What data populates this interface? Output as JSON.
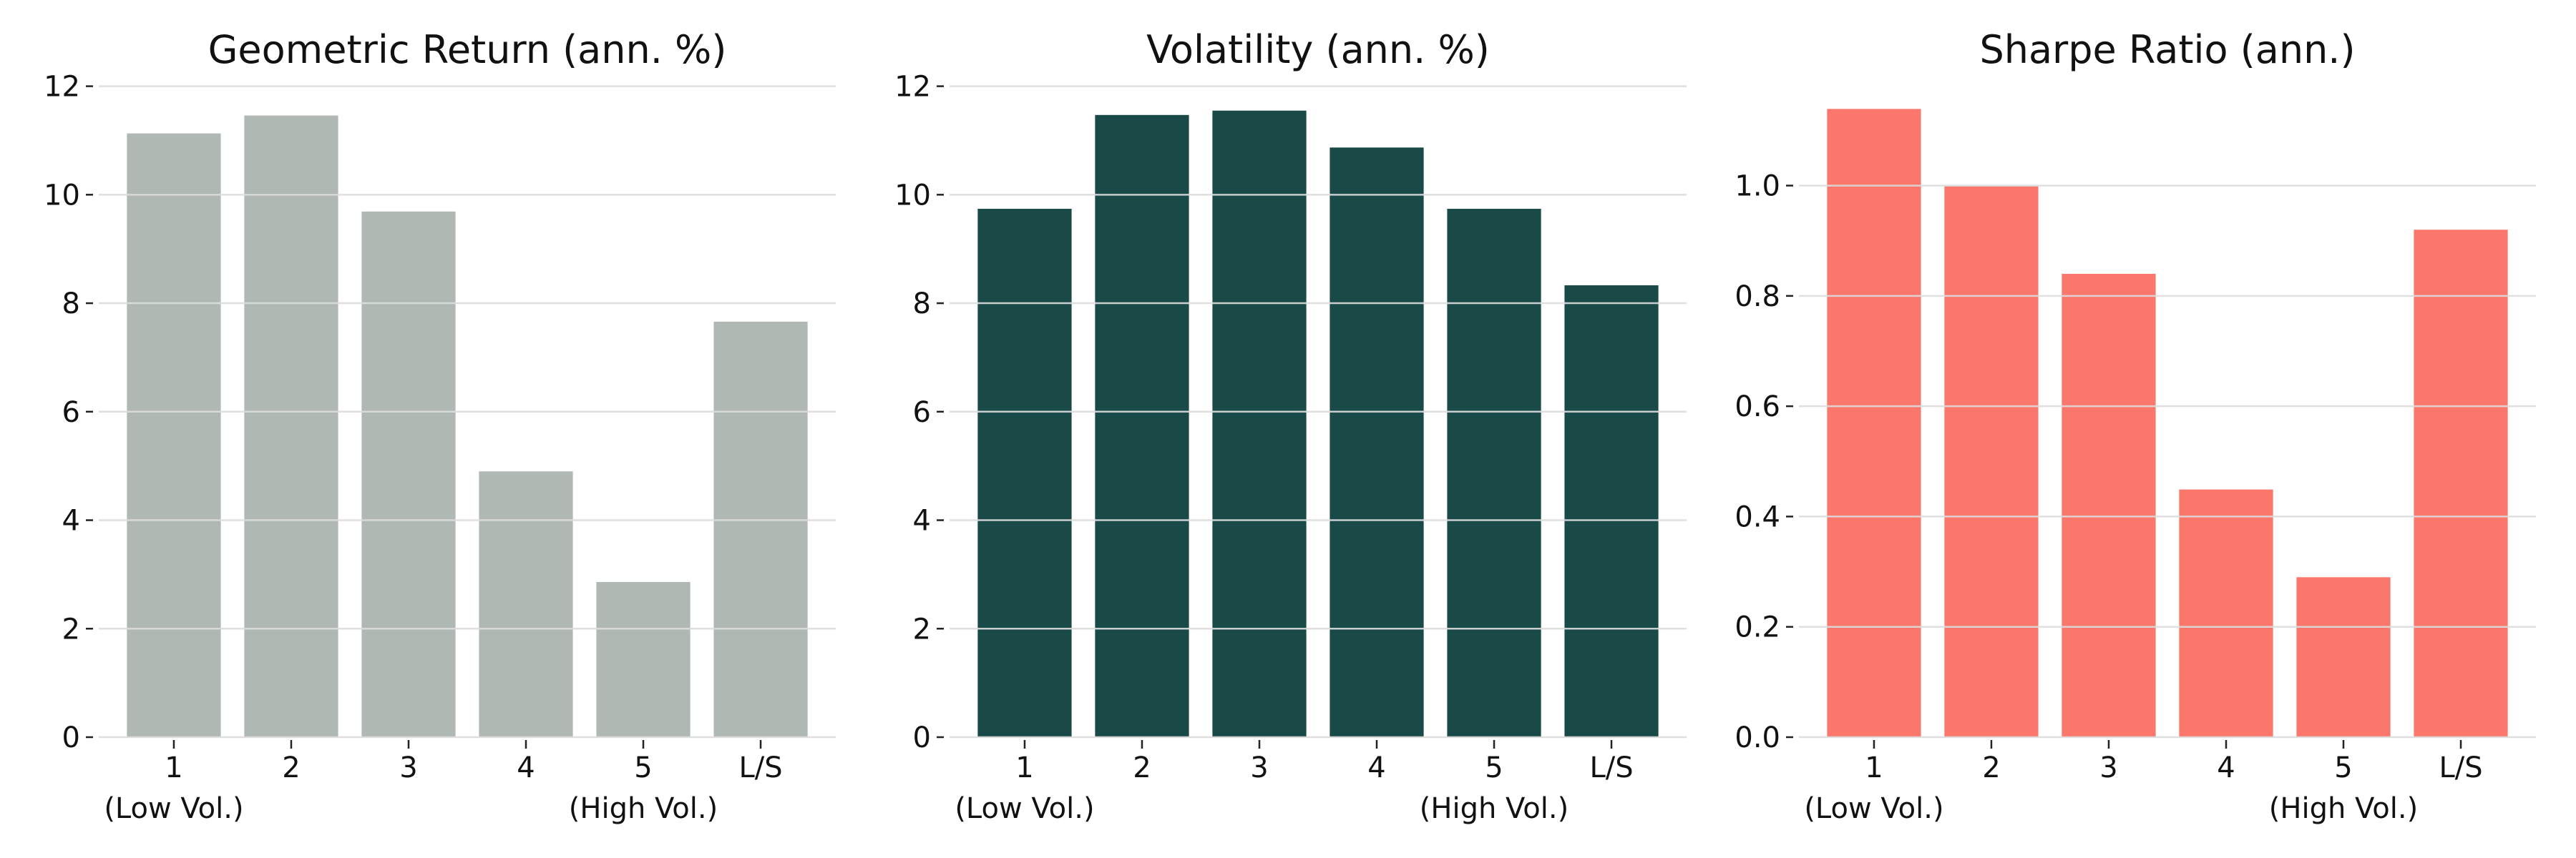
{
  "chart_data": [
    {
      "type": "bar",
      "title": "Geometric Return (ann. %)",
      "categories": [
        "1",
        "2",
        "3",
        "4",
        "5",
        "L/S"
      ],
      "category_sublabels": [
        "(Low Vol.)",
        "",
        "",
        "",
        "(High Vol.)",
        ""
      ],
      "values": [
        11.13,
        11.46,
        9.69,
        4.9,
        2.86,
        7.66
      ],
      "yticks": [
        "0",
        "2",
        "4",
        "6",
        "8",
        "10",
        "12"
      ],
      "ytick_values": [
        0,
        2,
        4,
        6,
        8,
        10,
        12
      ],
      "ylim": [
        0,
        12.1
      ],
      "grid": true,
      "color": "#b0b8b3"
    },
    {
      "type": "bar",
      "title": "Volatility (ann. %)",
      "categories": [
        "1",
        "2",
        "3",
        "4",
        "5",
        "L/S"
      ],
      "category_sublabels": [
        "(Low Vol.)",
        "",
        "",
        "",
        "(High Vol.)",
        ""
      ],
      "values": [
        9.74,
        11.47,
        11.55,
        10.87,
        9.74,
        8.33
      ],
      "yticks": [
        "0",
        "2",
        "4",
        "6",
        "8",
        "10",
        "12"
      ],
      "ytick_values": [
        0,
        2,
        4,
        6,
        8,
        10,
        12
      ],
      "ylim": [
        0,
        12.1
      ],
      "grid": true,
      "color": "#1a4a47"
    },
    {
      "type": "bar",
      "title": "Sharpe Ratio (ann.)",
      "categories": [
        "1",
        "2",
        "3",
        "4",
        "5",
        "L/S"
      ],
      "category_sublabels": [
        "(Low Vol.)",
        "",
        "",
        "",
        "(High Vol.)",
        ""
      ],
      "values": [
        1.139,
        0.999,
        0.84,
        0.449,
        0.29,
        0.92
      ],
      "yticks": [
        "0.0",
        "0.2",
        "0.4",
        "0.6",
        "0.8",
        "1.0"
      ],
      "ytick_values": [
        0,
        0.2,
        0.4,
        0.6,
        0.8,
        1.0
      ],
      "ylim": [
        0,
        1.19
      ],
      "grid": true,
      "color": "#fb766b"
    }
  ]
}
